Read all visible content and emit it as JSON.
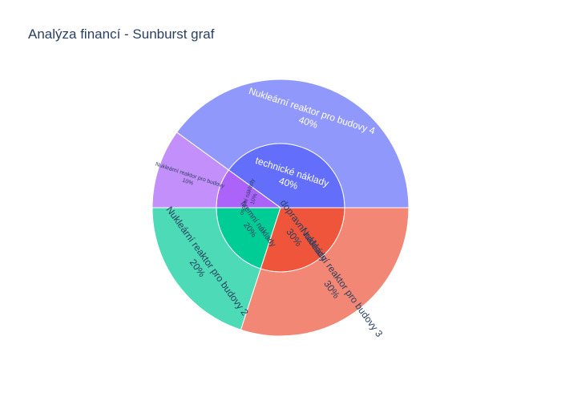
{
  "chart_data": {
    "type": "sunburst",
    "title": "Analýza financí - Sunburst graf",
    "total": 100,
    "inner": [
      {
        "label": "technické náklady",
        "value": 40,
        "pct": "40%",
        "color": "#636efa"
      },
      {
        "label": "osobní náklady",
        "value": 10,
        "pct": "10%",
        "color": "#ab63fa"
      },
      {
        "label": "firemní náklady",
        "value": 20,
        "pct": "20%",
        "color": "#00cc96"
      },
      {
        "label": "dopravní náklady",
        "value": 30,
        "pct": "30%",
        "color": "#ef553b"
      }
    ],
    "outer": [
      {
        "label": "Nukleární reaktor pro budovy 4",
        "parent": "technické náklady",
        "value": 40,
        "pct": "40%",
        "color": "#9198fb"
      },
      {
        "label": "Nukleární reaktor pro budovy",
        "parent": "osobní náklady",
        "value": 10,
        "pct": "10%",
        "color": "#c38ffb"
      },
      {
        "label": "Nukleární reaktor pro budovy 2",
        "parent": "firemní náklady",
        "value": 20,
        "pct": "20%",
        "color": "#4cdbb6"
      },
      {
        "label": "Nukleární reaktor pro budovy 3",
        "parent": "dopravní náklady",
        "value": 30,
        "pct": "30%",
        "color": "#f38775"
      }
    ]
  }
}
